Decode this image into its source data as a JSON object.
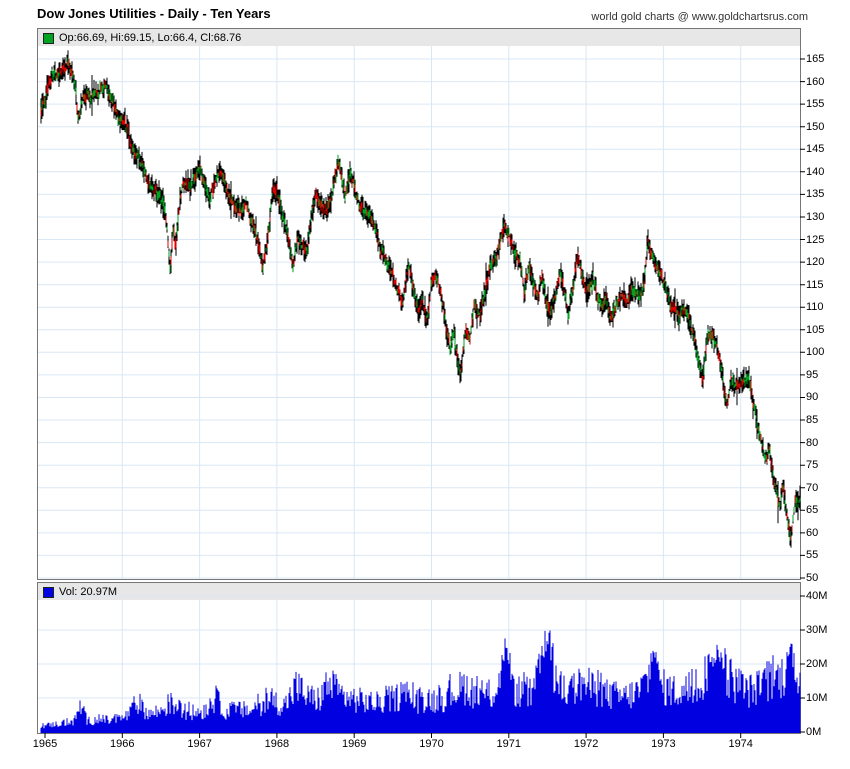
{
  "header": {
    "title": "Dow Jones Utilities - Daily - Ten Years",
    "watermark": "world gold charts @ www.goldchartsrus.com"
  },
  "price_panel": {
    "legend": "Op:66.69, Hi:69.15, Lo:66.4, Cl:68.76"
  },
  "volume_panel": {
    "legend": "Vol: 20.97M"
  },
  "style": {
    "grid_color": "#d9e7f5",
    "bar_color": "#000000",
    "up_color": "#00a321",
    "down_color": "#dc0000",
    "volume_color": "#0000e0",
    "legend_bg": "#e7e7e7",
    "tick_color": "#000000"
  },
  "chart_data": [
    {
      "type": "ohlc-line",
      "title": "Dow Jones Utilities daily price",
      "ylim": [
        50,
        165
      ],
      "y_ticks": [
        165,
        160,
        155,
        150,
        145,
        140,
        135,
        130,
        125,
        120,
        115,
        110,
        105,
        100,
        95,
        90,
        85,
        80,
        75,
        70,
        65,
        60,
        55,
        50
      ],
      "x_ticks": [
        1965,
        1966,
        1967,
        1968,
        1969,
        1970,
        1971,
        1972,
        1973,
        1974
      ],
      "grid": true,
      "legend_position": "top-left",
      "last_ohlc": {
        "open": 66.69,
        "high": 69.15,
        "low": 66.4,
        "close": 68.76
      },
      "points": [
        [
          1964.95,
          153.5
        ],
        [
          1965.0,
          156
        ],
        [
          1965.04,
          159
        ],
        [
          1965.08,
          161
        ],
        [
          1965.13,
          162
        ],
        [
          1965.18,
          161.5
        ],
        [
          1965.24,
          163
        ],
        [
          1965.3,
          163.8
        ],
        [
          1965.36,
          161.5
        ],
        [
          1965.4,
          158
        ],
        [
          1965.43,
          150.8
        ],
        [
          1965.47,
          155.5
        ],
        [
          1965.52,
          157
        ],
        [
          1965.58,
          156.5
        ],
        [
          1965.64,
          157.5
        ],
        [
          1965.72,
          158
        ],
        [
          1965.78,
          159.2
        ],
        [
          1965.84,
          157
        ],
        [
          1965.9,
          154.5
        ],
        [
          1965.96,
          151.8
        ],
        [
          1966.02,
          151.5
        ],
        [
          1966.06,
          149.8
        ],
        [
          1966.1,
          147
        ],
        [
          1966.16,
          144
        ],
        [
          1966.21,
          143
        ],
        [
          1966.26,
          141.8
        ],
        [
          1966.31,
          139
        ],
        [
          1966.36,
          136.5
        ],
        [
          1966.42,
          136
        ],
        [
          1966.48,
          134.8
        ],
        [
          1966.52,
          133.5
        ],
        [
          1966.56,
          130.5
        ],
        [
          1966.59,
          125
        ],
        [
          1966.62,
          118.5
        ],
        [
          1966.66,
          127.5
        ],
        [
          1966.69,
          123.5
        ],
        [
          1966.74,
          133
        ],
        [
          1966.79,
          137.5
        ],
        [
          1966.83,
          138.2
        ],
        [
          1966.87,
          136.5
        ],
        [
          1966.93,
          138.5
        ],
        [
          1967.0,
          140.8
        ],
        [
          1967.07,
          137.5
        ],
        [
          1967.13,
          134
        ],
        [
          1967.2,
          138
        ],
        [
          1967.27,
          140.8
        ],
        [
          1967.34,
          136.5
        ],
        [
          1967.4,
          133.8
        ],
        [
          1967.47,
          132.5
        ],
        [
          1967.54,
          131.5
        ],
        [
          1967.6,
          133
        ],
        [
          1967.68,
          128.5
        ],
        [
          1967.75,
          125.3
        ],
        [
          1967.82,
          119.3
        ],
        [
          1967.88,
          125
        ],
        [
          1967.95,
          136.2
        ],
        [
          1968.0,
          135.8
        ],
        [
          1968.06,
          131
        ],
        [
          1968.12,
          127.5
        ],
        [
          1968.17,
          122.5
        ],
        [
          1968.21,
          119.5
        ],
        [
          1968.27,
          125.5
        ],
        [
          1968.33,
          123
        ],
        [
          1968.39,
          122.5
        ],
        [
          1968.44,
          129
        ],
        [
          1968.5,
          135.5
        ],
        [
          1968.56,
          133
        ],
        [
          1968.62,
          131
        ],
        [
          1968.68,
          132.5
        ],
        [
          1968.74,
          137.5
        ],
        [
          1968.8,
          142.3
        ],
        [
          1968.88,
          134.5
        ],
        [
          1968.95,
          140
        ],
        [
          1969.02,
          135.5
        ],
        [
          1969.08,
          132
        ],
        [
          1969.15,
          131.5
        ],
        [
          1969.22,
          129.5
        ],
        [
          1969.29,
          127
        ],
        [
          1969.34,
          122.5
        ],
        [
          1969.4,
          121
        ],
        [
          1969.46,
          118.5
        ],
        [
          1969.51,
          116.5
        ],
        [
          1969.57,
          113.5
        ],
        [
          1969.63,
          110.5
        ],
        [
          1969.7,
          119.5
        ],
        [
          1969.77,
          114
        ],
        [
          1969.83,
          108.5
        ],
        [
          1969.88,
          112
        ],
        [
          1969.94,
          106.5
        ],
        [
          1970.0,
          115.5
        ],
        [
          1970.06,
          117.5
        ],
        [
          1970.13,
          112
        ],
        [
          1970.19,
          105.5
        ],
        [
          1970.24,
          100.5
        ],
        [
          1970.29,
          104.5
        ],
        [
          1970.34,
          97.5
        ],
        [
          1970.38,
          95.3
        ],
        [
          1970.44,
          105.5
        ],
        [
          1970.49,
          102.5
        ],
        [
          1970.55,
          110
        ],
        [
          1970.61,
          108
        ],
        [
          1970.67,
          111.5
        ],
        [
          1970.76,
          119
        ],
        [
          1970.83,
          120.5
        ],
        [
          1970.89,
          124.5
        ],
        [
          1970.94,
          128.3
        ],
        [
          1971.02,
          125.1
        ],
        [
          1971.08,
          121.8
        ],
        [
          1971.15,
          119.9
        ],
        [
          1971.2,
          113.2
        ],
        [
          1971.26,
          119.5
        ],
        [
          1971.32,
          115
        ],
        [
          1971.37,
          112
        ],
        [
          1971.43,
          116.5
        ],
        [
          1971.49,
          111
        ],
        [
          1971.54,
          108.8
        ],
        [
          1971.6,
          113
        ],
        [
          1971.66,
          117.5
        ],
        [
          1971.72,
          113
        ],
        [
          1971.77,
          108.5
        ],
        [
          1971.83,
          114.5
        ],
        [
          1971.89,
          122.2
        ],
        [
          1971.96,
          116
        ],
        [
          1972.02,
          113.2
        ],
        [
          1972.09,
          116.8
        ],
        [
          1972.15,
          112
        ],
        [
          1972.2,
          110
        ],
        [
          1972.26,
          112
        ],
        [
          1972.32,
          107.8
        ],
        [
          1972.39,
          110.5
        ],
        [
          1972.46,
          113
        ],
        [
          1972.53,
          111.5
        ],
        [
          1972.6,
          114.2
        ],
        [
          1972.66,
          112.5
        ],
        [
          1972.72,
          113.5
        ],
        [
          1972.76,
          117
        ],
        [
          1972.8,
          125
        ],
        [
          1972.85,
          122
        ],
        [
          1972.9,
          119.8
        ],
        [
          1972.96,
          117.5
        ],
        [
          1973.02,
          115
        ],
        [
          1973.08,
          111.2
        ],
        [
          1973.14,
          109.5
        ],
        [
          1973.2,
          108
        ],
        [
          1973.26,
          110
        ],
        [
          1973.32,
          107.5
        ],
        [
          1973.37,
          104.5
        ],
        [
          1973.42,
          101.5
        ],
        [
          1973.47,
          96
        ],
        [
          1973.51,
          94.2
        ],
        [
          1973.57,
          103.5
        ],
        [
          1973.64,
          104.2
        ],
        [
          1973.7,
          100.5
        ],
        [
          1973.75,
          96.5
        ],
        [
          1973.79,
          91.5
        ],
        [
          1973.82,
          87.5
        ],
        [
          1973.87,
          94
        ],
        [
          1973.93,
          92.5
        ],
        [
          1974.0,
          93.2
        ],
        [
          1974.06,
          93.8
        ],
        [
          1974.11,
          94.2
        ],
        [
          1974.16,
          88.5
        ],
        [
          1974.2,
          85.5
        ],
        [
          1974.24,
          82.5
        ],
        [
          1974.28,
          79
        ],
        [
          1974.33,
          76.5
        ],
        [
          1974.37,
          78.8
        ],
        [
          1974.42,
          72.5
        ],
        [
          1974.46,
          69.5
        ],
        [
          1974.5,
          65.8
        ],
        [
          1974.55,
          70.5
        ],
        [
          1974.59,
          65
        ],
        [
          1974.62,
          61
        ],
        [
          1974.65,
          58.3
        ],
        [
          1974.68,
          64
        ],
        [
          1974.71,
          67.5
        ],
        [
          1974.74,
          66
        ],
        [
          1974.77,
          68.8
        ]
      ]
    },
    {
      "type": "bar",
      "title": "Daily volume (millions of shares)",
      "ylim": [
        0,
        40
      ],
      "y_ticks": [
        "40M",
        "30M",
        "20M",
        "10M",
        "0M"
      ],
      "y_tick_values": [
        40,
        30,
        20,
        10,
        0
      ],
      "x_ticks": [
        1965,
        1966,
        1967,
        1968,
        1969,
        1970,
        1971,
        1972,
        1973,
        1974
      ],
      "last_value": "20.97M",
      "envelope_points": [
        [
          1964.95,
          2.2
        ],
        [
          1965.05,
          2.8
        ],
        [
          1965.15,
          3.2
        ],
        [
          1965.25,
          3.6
        ],
        [
          1965.38,
          4.2
        ],
        [
          1965.45,
          10.3
        ],
        [
          1965.55,
          4.4
        ],
        [
          1965.7,
          5.0
        ],
        [
          1965.85,
          4.6
        ],
        [
          1966.0,
          5.5
        ],
        [
          1966.1,
          7.5
        ],
        [
          1966.2,
          11.8
        ],
        [
          1966.35,
          7.2
        ],
        [
          1966.5,
          8.5
        ],
        [
          1966.62,
          11.5
        ],
        [
          1966.75,
          9.0
        ],
        [
          1966.9,
          7.8
        ],
        [
          1967.05,
          8.5
        ],
        [
          1967.2,
          13.2
        ],
        [
          1967.35,
          8.2
        ],
        [
          1967.5,
          9.0
        ],
        [
          1967.65,
          8.6
        ],
        [
          1967.82,
          11.5
        ],
        [
          1967.95,
          12.5
        ],
        [
          1968.1,
          10.5
        ],
        [
          1968.25,
          18.4
        ],
        [
          1968.4,
          14.0
        ],
        [
          1968.55,
          13.0
        ],
        [
          1968.66,
          19.5
        ],
        [
          1968.8,
          15.5
        ],
        [
          1968.95,
          13.5
        ],
        [
          1969.1,
          12.5
        ],
        [
          1969.3,
          11.5
        ],
        [
          1969.5,
          13.5
        ],
        [
          1969.65,
          15.0
        ],
        [
          1969.8,
          12.5
        ],
        [
          1969.95,
          13.5
        ],
        [
          1970.1,
          12.5
        ],
        [
          1970.3,
          16.5
        ],
        [
          1970.45,
          18.5
        ],
        [
          1970.6,
          14.5
        ],
        [
          1970.8,
          15.5
        ],
        [
          1970.95,
          27.0
        ],
        [
          1971.1,
          16.5
        ],
        [
          1971.3,
          15.0
        ],
        [
          1971.5,
          31.5
        ],
        [
          1971.65,
          18.0
        ],
        [
          1971.8,
          16.0
        ],
        [
          1971.95,
          20.0
        ],
        [
          1972.1,
          17.0
        ],
        [
          1972.3,
          15.0
        ],
        [
          1972.5,
          14.0
        ],
        [
          1972.7,
          16.5
        ],
        [
          1972.87,
          26.0
        ],
        [
          1973.0,
          18.0
        ],
        [
          1973.2,
          16.0
        ],
        [
          1973.4,
          17.5
        ],
        [
          1973.6,
          25.0
        ],
        [
          1973.8,
          24.5
        ],
        [
          1973.95,
          18.5
        ],
        [
          1974.1,
          16.5
        ],
        [
          1974.3,
          18.5
        ],
        [
          1974.5,
          22.0
        ],
        [
          1974.65,
          25.5
        ],
        [
          1974.77,
          20.97
        ]
      ]
    }
  ]
}
